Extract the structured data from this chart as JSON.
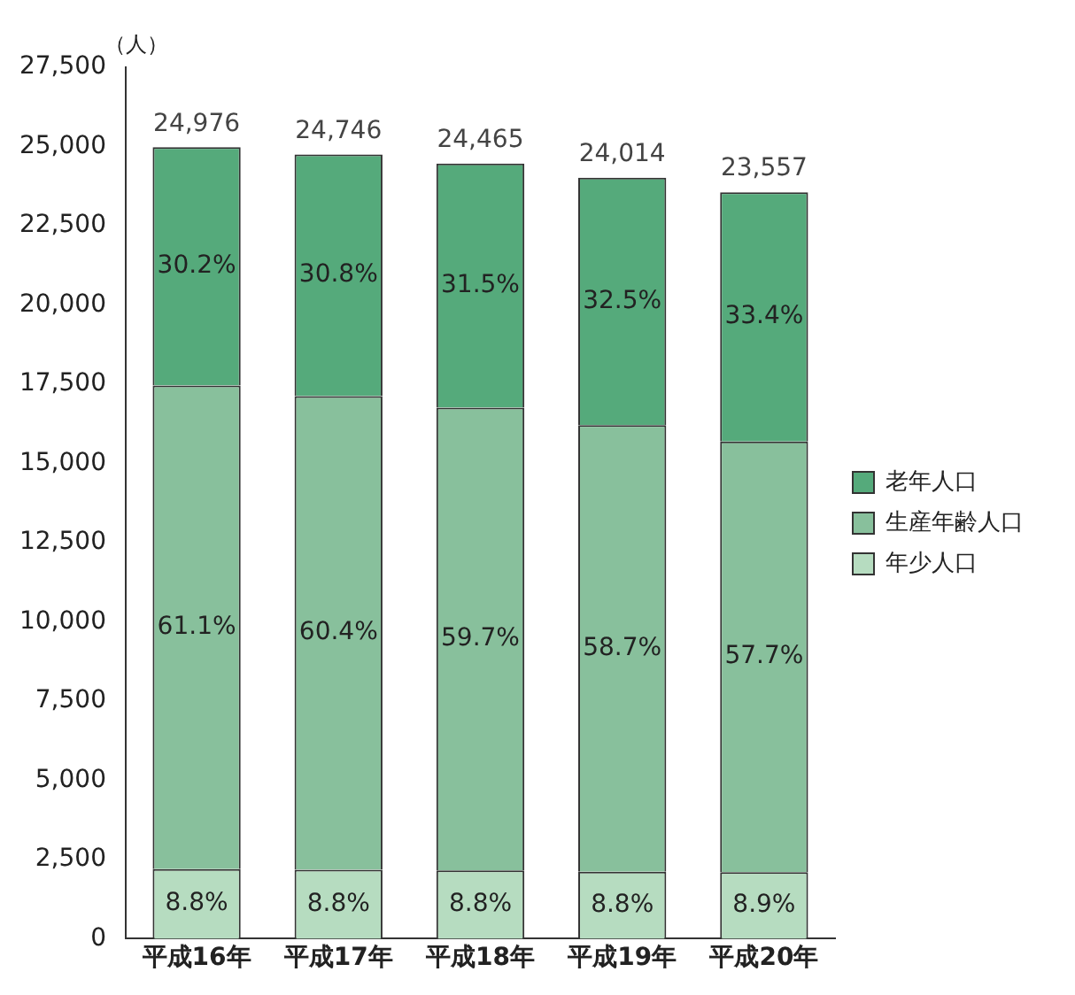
{
  "chart_data": {
    "type": "bar",
    "stacked": true,
    "ylabel": "（人）",
    "categories": [
      "平成16年",
      "平成17年",
      "平成18年",
      "平成19年",
      "平成20年"
    ],
    "series": [
      {
        "name": "年少人口",
        "color": "#b6dcc0",
        "values": [
          2198,
          2178,
          2153,
          2113,
          2097
        ]
      },
      {
        "name": "生産年齢人口",
        "color": "#88c09c",
        "values": [
          15260,
          14947,
          14606,
          14096,
          13592
        ]
      },
      {
        "name": "老年人口",
        "color": "#55aa7b",
        "values": [
          7518,
          7621,
          7706,
          7805,
          7868
        ]
      }
    ],
    "annotations": [
      "8.8%",
      "8.8%",
      "8.8%",
      "8.8%",
      "8.9%",
      "61.1%",
      "60.4%",
      "59.7%",
      "58.7%",
      "57.7%",
      "30.2%",
      "30.8%",
      "31.5%",
      "32.5%",
      "33.4%"
    ],
    "totals": [
      "24,976",
      "24,746",
      "24,465",
      "24,014",
      "23,557"
    ],
    "ylim": [
      0,
      27500
    ],
    "yticks": [
      0,
      {
        "value": 2500,
        "label": "2,500"
      },
      {
        "value": 5000,
        "label": "5,000"
      },
      {
        "value": 7500,
        "label": "7,500"
      },
      {
        "value": 10000,
        "label": "10,000"
      },
      {
        "value": 12500,
        "label": "12,500"
      },
      {
        "value": 15000,
        "label": "15,000"
      },
      {
        "value": 17500,
        "label": "17,500"
      },
      {
        "value": 20000,
        "label": "20,000"
      },
      {
        "value": 22500,
        "label": "22,500"
      },
      {
        "value": 25000,
        "label": "25,000"
      },
      {
        "value": 27500,
        "label": "27,500"
      }
    ],
    "grid": false,
    "legend": "right"
  }
}
